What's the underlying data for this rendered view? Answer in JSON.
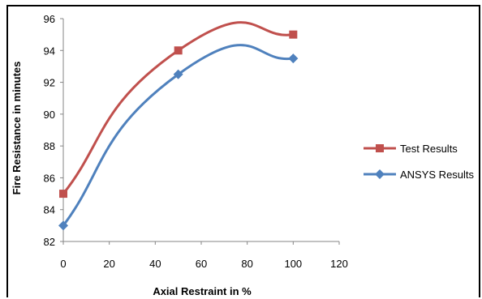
{
  "chart_data": {
    "type": "line",
    "xlabel": "Axial Restraint in %",
    "ylabel": "Fire Resistance  in minutes",
    "xlim": [
      0,
      120
    ],
    "ylim": [
      82,
      96
    ],
    "xticks": [
      0,
      20,
      40,
      60,
      80,
      100,
      120
    ],
    "yticks": [
      82,
      84,
      86,
      88,
      90,
      92,
      94,
      96
    ],
    "grid": false,
    "legend_position": "right",
    "series": [
      {
        "name": "Test Results",
        "color": "#c0504d",
        "marker": "square",
        "x": [
          0,
          50,
          100
        ],
        "y": [
          85,
          94,
          95
        ]
      },
      {
        "name": "ANSYS Results",
        "color": "#4f81bd",
        "marker": "diamond",
        "x": [
          0,
          50,
          100
        ],
        "y": [
          83,
          92.5,
          93.5
        ]
      }
    ]
  }
}
